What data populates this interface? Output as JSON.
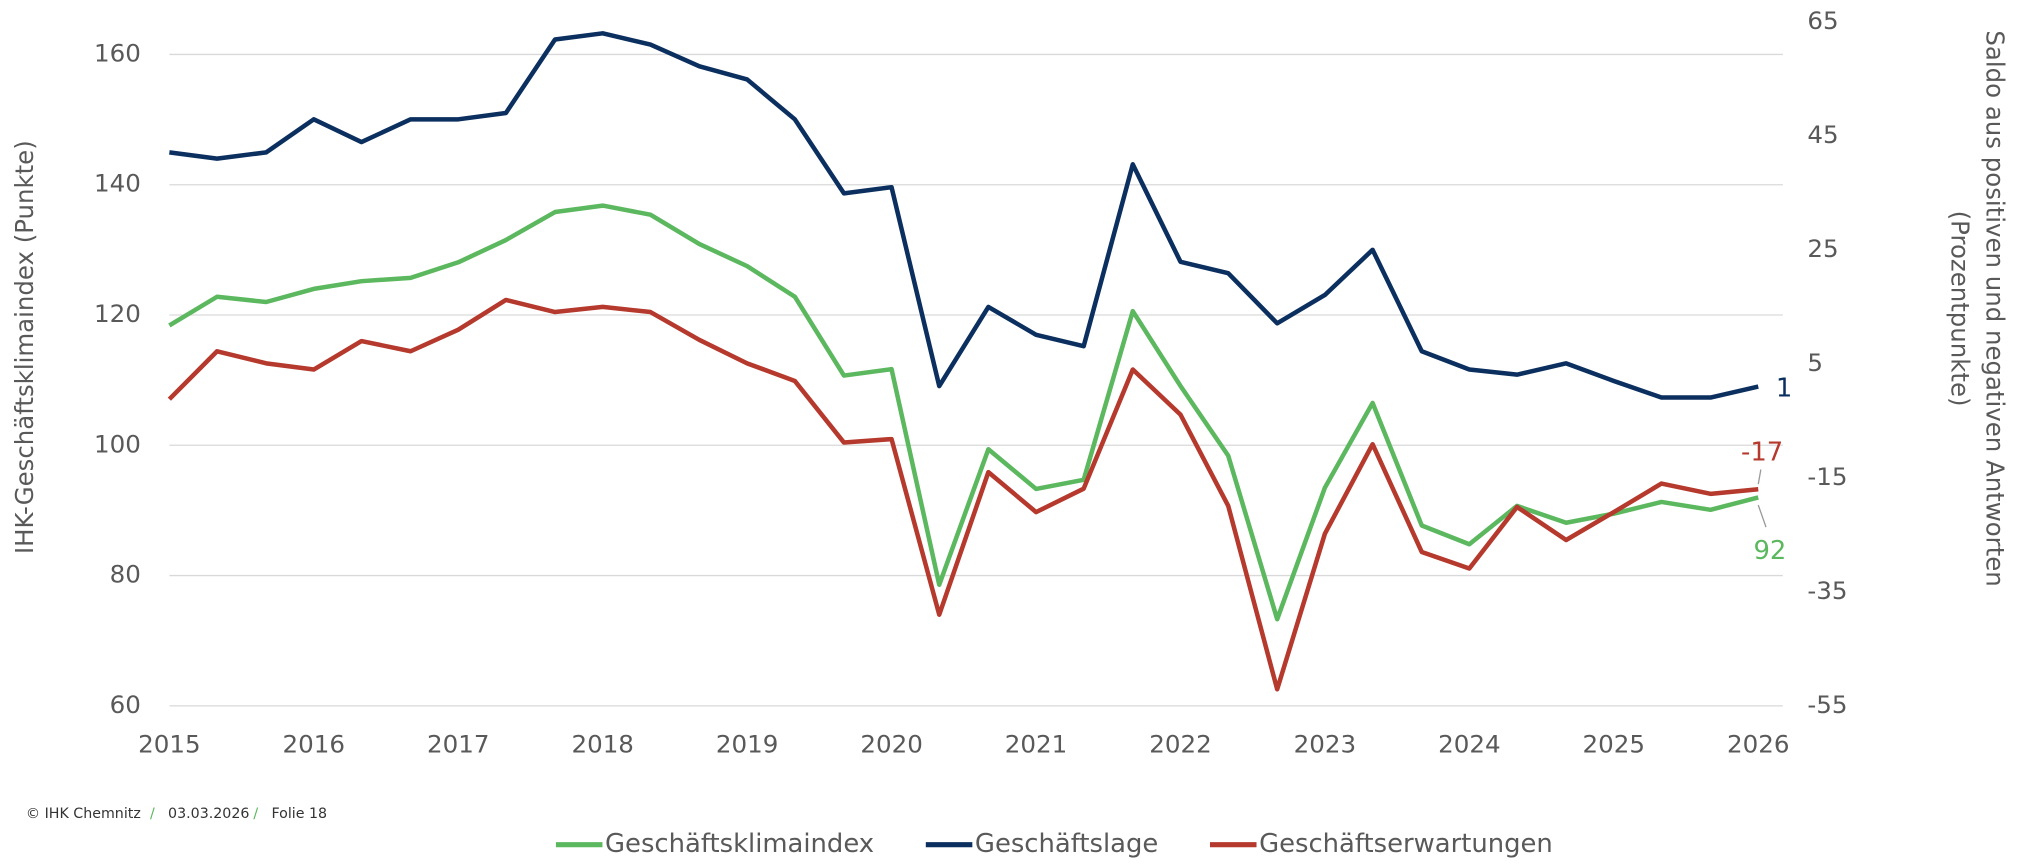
{
  "chart_data": {
    "type": "line",
    "ylabel": "IHK-Geschäftsklimaindex (Punkte)",
    "y2label": [
      "Saldo aus positiven und negativen Antworten",
      "(Prozentpunkte)"
    ],
    "x": [
      2015,
      2015.33,
      2015.67,
      2016,
      2016.33,
      2016.67,
      2017,
      2017.33,
      2017.67,
      2018,
      2018.33,
      2018.67,
      2019,
      2019.33,
      2019.67,
      2020,
      2020.33,
      2020.67,
      2021,
      2021.33,
      2021.67,
      2022,
      2022.33,
      2022.67,
      2023,
      2023.33,
      2023.67,
      2024,
      2024.33,
      2024.67,
      2025,
      2025.33,
      2025.67,
      2026
    ],
    "xlim": [
      2015,
      2026
    ],
    "xticks": [
      2015,
      2016,
      2017,
      2018,
      2019,
      2020,
      2021,
      2022,
      2023,
      2024,
      2025,
      2026
    ],
    "ylim": [
      60,
      165
    ],
    "yticks": [
      60,
      80,
      100,
      120,
      140,
      160
    ],
    "y2lim": [
      -55,
      65
    ],
    "y2ticks": [
      -55,
      -35,
      -15,
      5,
      25,
      45,
      65
    ],
    "grid": true,
    "series": [
      {
        "name": "Geschäftsklimaindex",
        "color": "#5cb85f",
        "values": [
          118.4,
          122.8,
          122,
          124,
          125.2,
          125.7,
          128.1,
          131.5,
          135.8,
          136.8,
          135.4,
          130.9,
          127.5,
          122.8,
          110.7,
          111.7,
          78.6,
          99.4,
          93.3,
          94.7,
          120.6,
          109.1,
          98.4,
          73.3,
          93.5,
          106.5,
          87.7,
          84.8,
          90.7,
          88.1,
          89.5,
          91.3,
          90.1,
          92
        ]
      },
      {
        "name": "Geschäftslage",
        "color": "#0b2f5f",
        "axis": "y2",
        "values": [
          42.1,
          41,
          42.1,
          47.9,
          43.9,
          47.9,
          47.9,
          49,
          61.9,
          63,
          61,
          57.2,
          54.9,
          47.9,
          34.9,
          36,
          1.1,
          15,
          10.1,
          8.1,
          40,
          22.9,
          20.9,
          12.1,
          17.1,
          25,
          7.2,
          4,
          3.1,
          5.1,
          2,
          -0.9,
          -0.9,
          1
        ]
      },
      {
        "name": "Geschäftserwartungen",
        "color": "#b5392c",
        "axis": "y2",
        "values": [
          -1.2,
          7.2,
          5.1,
          4,
          9,
          7.2,
          11,
          16.2,
          14.1,
          15,
          14.1,
          9.2,
          5.1,
          2,
          -8.8,
          -8.2,
          -39,
          -14,
          -21,
          -16.9,
          4,
          -3.9,
          -19.9,
          -52.1,
          -24.8,
          -9.1,
          -28,
          -30.9,
          -20.1,
          -25.9,
          -21,
          -16,
          -17.8,
          -17
        ]
      }
    ]
  },
  "footer": {
    "copyright": "© IHK Chemnitz",
    "sep1": "/",
    "date": "03.03.2026",
    "sep2": "/",
    "slide": "Folie 18"
  }
}
